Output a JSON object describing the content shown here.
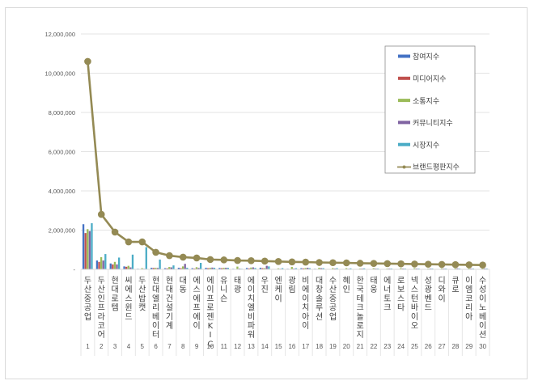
{
  "chart_data": {
    "type": "bar",
    "title": "",
    "xlabel": "",
    "ylabel": "",
    "ylim": [
      0,
      12000000
    ],
    "yticks": [
      "-",
      "2,000,000",
      "4,000,000",
      "6,000,000",
      "8,000,000",
      "10,000,000",
      "12,000,000"
    ],
    "grid": true,
    "legend_position": "upper right (inside)",
    "categories": [
      "두산중공업",
      "두산인프라코어",
      "현대로템",
      "씨에스윈드",
      "두산밥캣",
      "현대엘리베이터",
      "현대건설기계",
      "대동",
      "에스에프에이",
      "에이프로젠KIC",
      "유니슨",
      "태광",
      "에이치엘비파워",
      "우진",
      "엔케이",
      "광림",
      "비에이치아이",
      "대창솔루션",
      "수산중공업",
      "혜인",
      "한국테크놀로지",
      "태웅",
      "에너토크",
      "로보스타",
      "넥스턴바이오",
      "성광벤드",
      "디와이",
      "큐로",
      "이엠코리아",
      "수성이노베이션"
    ],
    "ranks": [
      "1",
      "2",
      "3",
      "4",
      "5",
      "6",
      "7",
      "8",
      "9",
      "10",
      "11",
      "12",
      "13",
      "14",
      "15",
      "16",
      "17",
      "18",
      "19",
      "20",
      "21",
      "22",
      "23",
      "24",
      "25",
      "26",
      "27",
      "28",
      "29",
      "30"
    ],
    "series": [
      {
        "name": "참여지수",
        "type": "bar",
        "color": "#4472c4",
        "values": [
          2300000,
          450000,
          300000,
          150000,
          30000,
          80000,
          60000,
          80000,
          60000,
          80000,
          70000,
          30000,
          70000,
          80000,
          20000,
          30000,
          60000,
          30000,
          20000,
          10000,
          20000,
          20000,
          20000,
          20000,
          20000,
          20000,
          20000,
          20000,
          20000,
          20000
        ]
      },
      {
        "name": "미디어지수",
        "type": "bar",
        "color": "#c0504d",
        "values": [
          1850000,
          380000,
          250000,
          130000,
          20000,
          70000,
          50000,
          60000,
          40000,
          60000,
          60000,
          20000,
          50000,
          60000,
          20000,
          20000,
          50000,
          20000,
          20000,
          10000,
          20000,
          20000,
          20000,
          20000,
          20000,
          20000,
          20000,
          20000,
          20000,
          20000
        ]
      },
      {
        "name": "소통지수",
        "type": "bar",
        "color": "#9bbb59",
        "values": [
          2050000,
          620000,
          380000,
          180000,
          60000,
          80000,
          120000,
          150000,
          110000,
          80000,
          80000,
          140000,
          90000,
          60000,
          50000,
          120000,
          70000,
          80000,
          60000,
          60000,
          40000,
          60000,
          40000,
          60000,
          60000,
          40000,
          50000,
          50000,
          50000,
          40000
        ]
      },
      {
        "name": "커뮤니티지수",
        "type": "bar",
        "color": "#8064a2",
        "values": [
          1950000,
          450000,
          250000,
          100000,
          30000,
          70000,
          100000,
          280000,
          70000,
          90000,
          80000,
          40000,
          100000,
          180000,
          30000,
          40000,
          80000,
          60000,
          40000,
          30000,
          40000,
          40000,
          40000,
          40000,
          40000,
          40000,
          40000,
          50000,
          40000,
          40000
        ]
      },
      {
        "name": "시장지수",
        "type": "bar",
        "color": "#4bacc6",
        "values": [
          2350000,
          780000,
          600000,
          750000,
          1130000,
          500000,
          200000,
          80000,
          330000,
          80000,
          80000,
          30000,
          70000,
          150000,
          60000,
          60000,
          60000,
          60000,
          60000,
          50000,
          50000,
          40000,
          40000,
          40000,
          40000,
          40000,
          40000,
          40000,
          40000,
          40000
        ]
      },
      {
        "name": "브랜드평판지수",
        "type": "line",
        "color": "#948a54",
        "values": [
          10600000,
          2800000,
          1900000,
          1400000,
          1400000,
          870000,
          700000,
          620000,
          580000,
          500000,
          480000,
          450000,
          440000,
          420000,
          400000,
          380000,
          370000,
          350000,
          340000,
          330000,
          310000,
          300000,
          290000,
          280000,
          270000,
          260000,
          250000,
          240000,
          230000,
          220000
        ]
      }
    ]
  },
  "legend": {
    "items": [
      {
        "label": "참여지수",
        "color": "#4472c4",
        "kind": "bar"
      },
      {
        "label": "미디어지수",
        "color": "#c0504d",
        "kind": "bar"
      },
      {
        "label": "소통지수",
        "color": "#9bbb59",
        "kind": "bar"
      },
      {
        "label": "커뮤니티지수",
        "color": "#8064a2",
        "kind": "bar"
      },
      {
        "label": "시장지수",
        "color": "#4bacc6",
        "kind": "bar"
      },
      {
        "label": "브랜드평판지수",
        "color": "#948a54",
        "kind": "line"
      }
    ]
  }
}
